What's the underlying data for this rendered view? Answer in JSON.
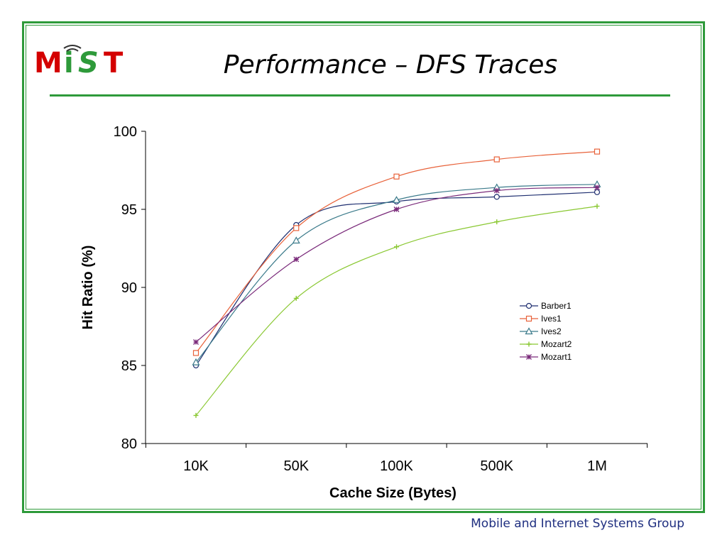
{
  "slide": {
    "title": "Performance – DFS Traces",
    "footer": "Mobile and Internet Systems Group",
    "logo_text": "MiST",
    "colors": {
      "frame": "#2e9a3a",
      "logo_red": "#d40000",
      "logo_green": "#2e9a3a",
      "footer_text": "#1f2f80"
    }
  },
  "chart_data": {
    "type": "line",
    "categories": [
      "10K",
      "50K",
      "100K",
      "500K",
      "1M"
    ],
    "xlabel": "Cache Size (Bytes)",
    "ylabel": "Hit Ratio (%)",
    "ylim": [
      80,
      100
    ],
    "yticks": [
      80,
      85,
      90,
      95,
      100
    ],
    "grid": false,
    "legend_position": "right-middle",
    "series": [
      {
        "name": "Barber1",
        "values": [
          85.0,
          94.0,
          95.5,
          95.8,
          96.1
        ],
        "color": "#1f2f70",
        "marker": "circle"
      },
      {
        "name": "Ives1",
        "values": [
          85.8,
          93.8,
          97.1,
          98.2,
          98.7
        ],
        "color": "#e8623a",
        "marker": "square"
      },
      {
        "name": "Ives2",
        "values": [
          85.2,
          93.0,
          95.6,
          96.4,
          96.6
        ],
        "color": "#3a7a8a",
        "marker": "triangle"
      },
      {
        "name": "Mozart2",
        "values": [
          81.8,
          89.3,
          92.6,
          94.2,
          95.2
        ],
        "color": "#8ac832",
        "marker": "plus"
      },
      {
        "name": "Mozart1",
        "values": [
          86.5,
          91.8,
          95.0,
          96.2,
          96.4
        ],
        "color": "#7a2a7a",
        "marker": "star"
      }
    ]
  }
}
